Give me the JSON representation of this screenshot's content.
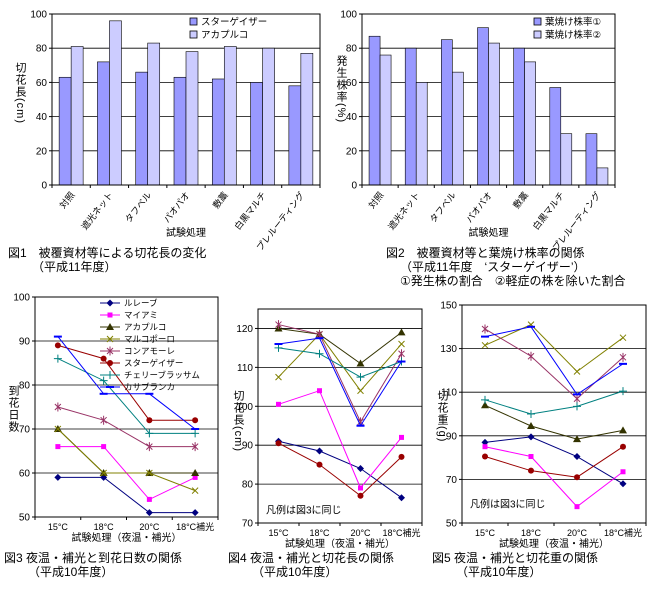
{
  "page": {
    "background": "#ffffff"
  },
  "chart_data": [
    {
      "type": "bar",
      "fig": "図1",
      "caption": [
        "図1　被覆資材等による切花長の変化",
        "（平成11年度）"
      ],
      "ylabel": "切花長(cm)",
      "xlabel": "試験処理",
      "ylim": [
        0,
        100
      ],
      "yticks": [
        0,
        20,
        40,
        60,
        80,
        100
      ],
      "gridlines": [
        20,
        40,
        60,
        80
      ],
      "legend_position": "top-right",
      "categories": [
        "対照",
        "遮光ネット",
        "タフベル",
        "パオパオ",
        "敷藁",
        "白黒マルチ",
        "プレルーティング"
      ],
      "series": [
        {
          "name": "スターゲイザー",
          "key": "stargazer",
          "color": "#9999FF",
          "values": [
            63,
            72,
            66,
            63,
            62,
            60,
            58
          ]
        },
        {
          "name": "アカプルコ",
          "key": "acapulco",
          "color": "#CCCCFF",
          "values": [
            81,
            96,
            83,
            78,
            81,
            80,
            77
          ]
        }
      ]
    },
    {
      "type": "bar",
      "fig": "図2",
      "caption": [
        "図2　被覆資材等と葉焼け株率の関係",
        "（平成11年度　‘スターゲイザー’）",
        "①発生株の割合　②軽症の株を除いた割合"
      ],
      "ylabel": "発生株率(%)",
      "xlabel": "試験処理",
      "ylim": [
        0,
        100
      ],
      "yticks": [
        0,
        20,
        40,
        60,
        80,
        100
      ],
      "gridlines": [
        20,
        40,
        60,
        80
      ],
      "legend_position": "top-right",
      "categories": [
        "対照",
        "遮光ネット",
        "タフベル",
        "パオパオ",
        "敷藁",
        "白黒マルチ",
        "プレルーティング"
      ],
      "series": [
        {
          "name": "葉焼け株率①",
          "key": "leaf-burn-rate-1",
          "color": "#9999FF",
          "values": [
            87,
            80,
            85,
            92,
            80,
            57,
            30
          ]
        },
        {
          "name": "葉焼け株率②",
          "key": "leaf-burn-rate-2",
          "color": "#CCCCFF",
          "values": [
            76,
            60,
            66,
            83,
            72,
            30,
            10
          ]
        }
      ]
    },
    {
      "type": "line",
      "fig": "図3",
      "caption": [
        "図3 夜温・補光と到花日数の関係",
        "（平成10年度）"
      ],
      "ylabel": "到花日数",
      "xlabel": "試験処理（夜温・補光）",
      "ylim": [
        50,
        100
      ],
      "yticks": [
        50,
        60,
        70,
        80,
        90,
        100
      ],
      "gridlines": [
        60,
        70,
        80,
        90
      ],
      "legend": true,
      "categories": [
        "15°C",
        "18°C",
        "20°C",
        "18°C補光"
      ],
      "series": [
        {
          "name": "ルレーブ",
          "key": "le-reve",
          "color": "#000080",
          "marker": "diamond",
          "values": [
            59,
            59,
            51,
            51
          ]
        },
        {
          "name": "マイアミ",
          "key": "miami",
          "color": "#FF00FF",
          "marker": "square",
          "values": [
            66,
            66,
            54,
            59
          ]
        },
        {
          "name": "アカプルコ",
          "key": "acapulco",
          "color": "#333300",
          "marker": "triangle",
          "values": [
            70,
            60,
            60,
            60
          ]
        },
        {
          "name": "マルコポーロ",
          "key": "marco-polo",
          "color": "#808000",
          "marker": "x",
          "values": [
            70,
            60,
            60,
            56
          ]
        },
        {
          "name": "コンアモーレ",
          "key": "con-amore",
          "color": "#993366",
          "marker": "star",
          "values": [
            75,
            72,
            66,
            66
          ]
        },
        {
          "name": "スターゲイザー",
          "key": "stargazer",
          "color": "#990000",
          "marker": "circle",
          "values": [
            89,
            86,
            72,
            72
          ]
        },
        {
          "name": "チェリーブラッサム",
          "key": "cherry-blossom",
          "color": "#008080",
          "marker": "plus",
          "values": [
            86,
            81,
            69,
            69
          ]
        },
        {
          "name": "カサブランカ",
          "key": "casa-blanca",
          "color": "#0000FF",
          "marker": "dash",
          "values": [
            91,
            78,
            78,
            70
          ]
        }
      ]
    },
    {
      "type": "line",
      "fig": "図4",
      "caption": [
        "図4 夜温・補光と切花長の関係",
        "（平成10年度）"
      ],
      "ylabel": "切花長(cm)",
      "xlabel": "試験処理（夜温・補光）",
      "ylim": [
        70,
        125
      ],
      "yticks": [
        70,
        80,
        90,
        100,
        110,
        120
      ],
      "gridlines": [
        80,
        90,
        100,
        110,
        120
      ],
      "annotation": "凡例は図3に同じ",
      "annotation_y": 72.5,
      "categories": [
        "15°C",
        "18°C",
        "20°C",
        "18°C補光"
      ],
      "series": [
        {
          "name": "ルレーブ",
          "key": "le-reve",
          "color": "#000080",
          "marker": "diamond",
          "values": [
            91,
            88.5,
            84,
            76.5
          ]
        },
        {
          "name": "マイアミ",
          "key": "miami",
          "color": "#FF00FF",
          "marker": "square",
          "values": [
            100.5,
            104,
            79,
            92
          ]
        },
        {
          "name": "アカプルコ",
          "key": "acapulco",
          "color": "#333300",
          "marker": "triangle",
          "values": [
            120,
            118.5,
            111,
            119
          ]
        },
        {
          "name": "マルコポーロ",
          "key": "marco-polo",
          "color": "#808000",
          "marker": "x",
          "values": [
            107.5,
            118.5,
            104,
            116
          ]
        },
        {
          "name": "コンアモーレ",
          "key": "con-amore",
          "color": "#993366",
          "marker": "star",
          "values": [
            121,
            118.5,
            96,
            113.5
          ]
        },
        {
          "name": "スターゲイザー",
          "key": "stargazer",
          "color": "#990000",
          "marker": "circle",
          "values": [
            90.5,
            85,
            77,
            87
          ]
        },
        {
          "name": "チェリーブラッサム",
          "key": "cherry-blossom",
          "color": "#008080",
          "marker": "plus",
          "values": [
            115,
            113.5,
            107.5,
            111.5
          ]
        },
        {
          "name": "カサブランカ",
          "key": "casa-blanca",
          "color": "#0000FF",
          "marker": "dash",
          "values": [
            116,
            117.5,
            95,
            111.5
          ]
        }
      ]
    },
    {
      "type": "line",
      "fig": "図5",
      "caption": [
        "図5 夜温・補光と切花重の関係",
        "（平成10年度）"
      ],
      "ylabel": "切花重(g)",
      "xlabel": "試験処理（夜温・補光）",
      "ylim": [
        50,
        150
      ],
      "yticks": [
        50,
        70,
        90,
        110,
        130,
        150
      ],
      "gridlines": [
        70,
        90,
        110,
        130
      ],
      "annotation": "凡例は図3に同じ",
      "annotation_y": 57,
      "categories": [
        "15°C",
        "18°C",
        "20°C",
        "18°C補光"
      ],
      "series": [
        {
          "name": "ルレーブ",
          "key": "le-reve",
          "color": "#000080",
          "marker": "diamond",
          "values": [
            87,
            89.5,
            80.5,
            68
          ]
        },
        {
          "name": "マイアミ",
          "key": "miami",
          "color": "#FF00FF",
          "marker": "square",
          "values": [
            85,
            80.5,
            57.5,
            73.5
          ]
        },
        {
          "name": "アカプルコ",
          "key": "acapulco",
          "color": "#333300",
          "marker": "triangle",
          "values": [
            104,
            94.5,
            88.5,
            92.5
          ]
        },
        {
          "name": "マルコポーロ",
          "key": "marco-polo",
          "color": "#808000",
          "marker": "x",
          "values": [
            131.5,
            141,
            119.5,
            135
          ]
        },
        {
          "name": "コンアモーレ",
          "key": "con-amore",
          "color": "#993366",
          "marker": "star",
          "values": [
            139,
            126.5,
            107,
            126
          ]
        },
        {
          "name": "スターゲイザー",
          "key": "stargazer",
          "color": "#990000",
          "marker": "circle",
          "values": [
            80.5,
            74,
            71,
            85
          ]
        },
        {
          "name": "チェリーブラッサム",
          "key": "cherry-blossom",
          "color": "#008080",
          "marker": "plus",
          "values": [
            106.5,
            100,
            103.5,
            110.5
          ]
        },
        {
          "name": "カサブランカ",
          "key": "casa-blanca",
          "color": "#0000FF",
          "marker": "dash",
          "values": [
            135.5,
            140,
            109,
            123
          ]
        }
      ]
    }
  ]
}
